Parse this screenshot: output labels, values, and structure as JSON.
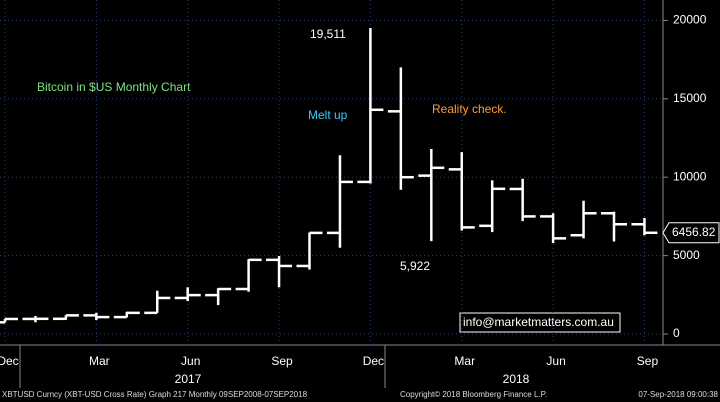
{
  "chart_data": {
    "type": "ohlc",
    "title": "Bitcoin in $US Monthly Chart",
    "categories": [
      "Dec",
      null,
      null,
      "Mar",
      null,
      null,
      "Jun",
      null,
      null,
      "Sep",
      null,
      null,
      "Dec",
      null,
      null,
      "Mar",
      null,
      null,
      "Jun",
      null,
      null,
      "Sep"
    ],
    "years": [
      "2017",
      "2018"
    ],
    "series": [
      {
        "color": "#ffffff",
        "open": [
          745,
          963,
          970,
          1190,
          1080,
          1350,
          2300,
          2480,
          2870,
          4730,
          4340,
          6450,
          9700,
          14200,
          10100,
          10500,
          6900,
          9250,
          7500,
          6300,
          7700,
          7000
        ],
        "high": [
          980,
          1150,
          1200,
          1350,
          1420,
          2760,
          2980,
          2920,
          4770,
          4970,
          6470,
          11400,
          19511,
          17000,
          11800,
          11600,
          9800,
          9900,
          7700,
          8500,
          7800,
          7400
        ],
        "low": [
          740,
          750,
          910,
          890,
          1060,
          1350,
          2100,
          1840,
          2700,
          2980,
          4110,
          5500,
          9600,
          9200,
          5922,
          6600,
          6500,
          7200,
          5800,
          6100,
          5900,
          6300
        ],
        "close": [
          960,
          970,
          1190,
          1080,
          1350,
          2300,
          2480,
          2870,
          4730,
          4340,
          6450,
          9700,
          14300,
          10000,
          10600,
          6800,
          9260,
          7500,
          6100,
          7700,
          7000,
          6456.82
        ]
      }
    ],
    "last_price": 6456.82,
    "annotations": {
      "melt": "Melt up",
      "reality": "Reality check.",
      "high": "19,511",
      "low": "5,922",
      "email": "info@marketmatters.com.au"
    },
    "ylim": [
      -700,
      21300
    ],
    "yticks": [
      0,
      5000,
      10000,
      15000,
      20000
    ],
    "grid": true,
    "footer": {
      "left": "XBTUSD Curncy (XBT-USD Cross Rate) Graph 217  Monthly 09SEP2008-07SEP2018",
      "center": "Copyright© 2018 Bloomberg Finance L.P.",
      "right": "07-Sep-2018 09:00:38"
    }
  }
}
